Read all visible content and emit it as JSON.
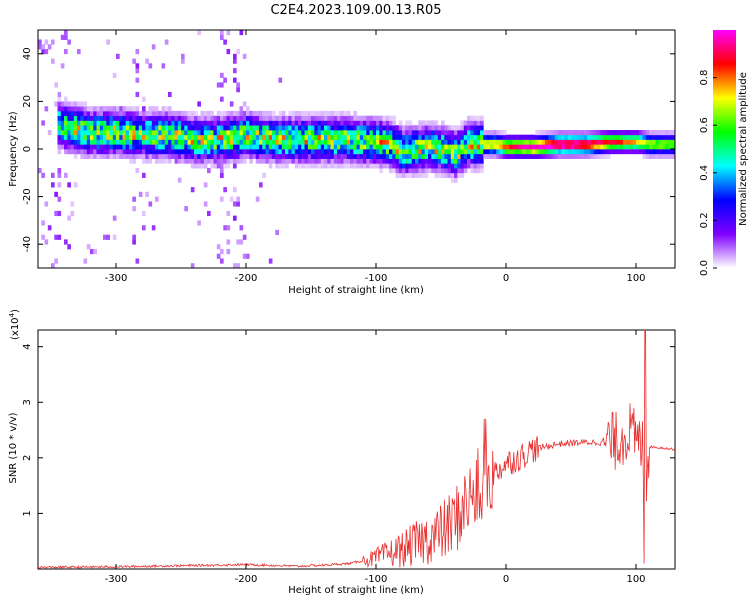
{
  "title": "C2E4.2023.109.00.13.R05",
  "chart_data": [
    {
      "type": "heatmap",
      "xlabel": "Height of straight line (km)",
      "ylabel": "Frequency (Hz)",
      "xlim": [
        -360,
        130
      ],
      "ylim": [
        -50,
        50
      ],
      "xticks": [
        -300,
        -200,
        -100,
        0,
        100
      ],
      "yticks": [
        -40,
        -20,
        0,
        20,
        40
      ],
      "grid": false,
      "colorbar": {
        "label": "Normalized spectral amplitude",
        "range": [
          0,
          1
        ],
        "ticks": [
          "0.0",
          "0.2",
          "0.4",
          "0.6",
          "0.8"
        ],
        "colormap": [
          "#ffffff",
          "#7f00ff",
          "#0000ff",
          "#00ffff",
          "#00ff00",
          "#ffff00",
          "#ff0000",
          "#ff00ff"
        ]
      },
      "ridge": {
        "x": [
          -345,
          -320,
          -300,
          -280,
          -260,
          -240,
          -220,
          -200,
          -180,
          -160,
          -140,
          -120,
          -100,
          -90,
          -80,
          -70,
          -60,
          -50,
          -40,
          -30,
          -20,
          -10,
          0,
          20,
          40,
          60,
          80,
          90,
          100,
          110,
          130
        ],
        "y": [
          9,
          6,
          6,
          5,
          5,
          3,
          3,
          5,
          3,
          3,
          3,
          3,
          2,
          1,
          -2,
          -1,
          0,
          -1,
          -3,
          1,
          1,
          1,
          0,
          0,
          1,
          1,
          2,
          2,
          2,
          1,
          1
        ]
      }
    },
    {
      "type": "line",
      "xlabel": "Height of straight line (km)",
      "ylabel": "SNR (10 * v/v)",
      "multiplier": "(x10",
      "multiplier_exp": "4",
      "xlim": [
        -360,
        130
      ],
      "ylim": [
        0,
        4.3
      ],
      "xticks": [
        -300,
        -200,
        -100,
        0,
        100
      ],
      "yticks": [
        1,
        2,
        3,
        4
      ],
      "grid": false,
      "series": [
        {
          "color": "#e83030",
          "x": [
            -360,
            -300,
            -250,
            -200,
            -160,
            -140,
            -120,
            -100,
            -90,
            -80,
            -70,
            -60,
            -50,
            -40,
            -30,
            -20,
            -15,
            -10,
            0,
            10,
            20,
            30,
            40,
            60,
            75,
            85,
            90,
            95,
            100,
            105,
            108,
            110,
            120,
            130
          ],
          "y": [
            0.03,
            0.04,
            0.06,
            0.08,
            0.05,
            0.07,
            0.1,
            0.2,
            0.28,
            0.35,
            0.45,
            0.55,
            0.65,
            0.85,
            1.2,
            1.45,
            1.6,
            1.7,
            1.9,
            2.0,
            2.15,
            2.2,
            2.25,
            2.28,
            2.28,
            2.3,
            2.4,
            2.5,
            2.3,
            2.2,
            1.5,
            2.2,
            2.18,
            2.15
          ]
        }
      ]
    }
  ]
}
